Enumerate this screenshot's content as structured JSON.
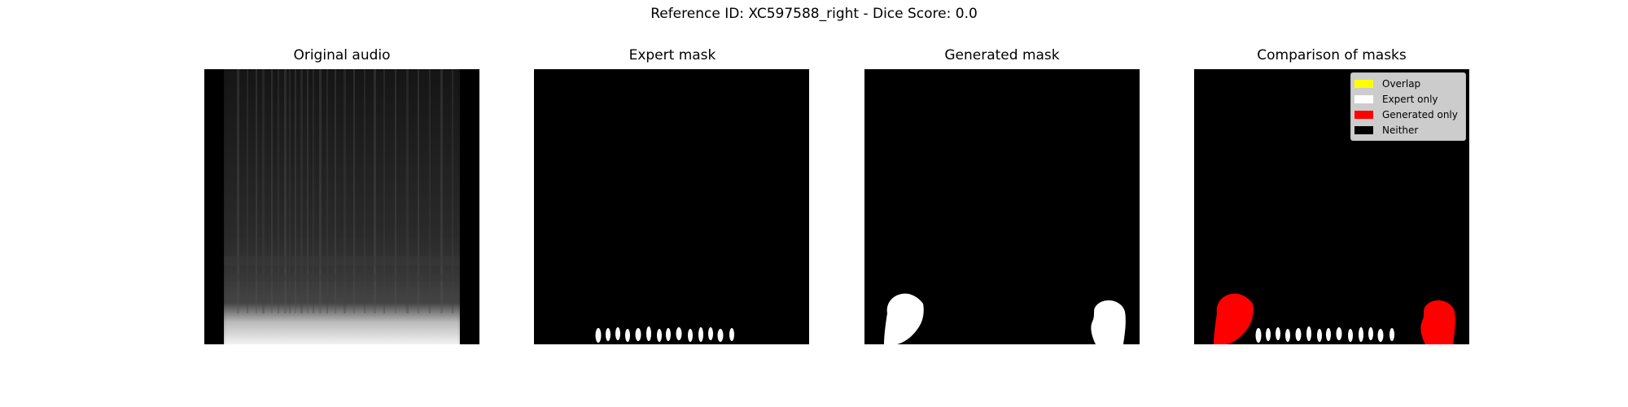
{
  "figure": {
    "title": "Reference ID: XC597588_right - Dice Score: 0.0"
  },
  "panels": [
    {
      "title": "Original audio"
    },
    {
      "title": "Expert mask"
    },
    {
      "title": "Generated mask"
    },
    {
      "title": "Comparison of masks"
    }
  ],
  "legend": {
    "items": [
      {
        "label": "Overlap",
        "color": "#ffff00"
      },
      {
        "label": "Expert only",
        "color": "#ffffff"
      },
      {
        "label": "Generated only",
        "color": "#ff0000"
      },
      {
        "label": "Neither",
        "color": "#000000"
      }
    ]
  },
  "colors": {
    "background": "#000000",
    "expert": "#ffffff",
    "generated": "#ff0000",
    "overlap": "#ffff00"
  }
}
